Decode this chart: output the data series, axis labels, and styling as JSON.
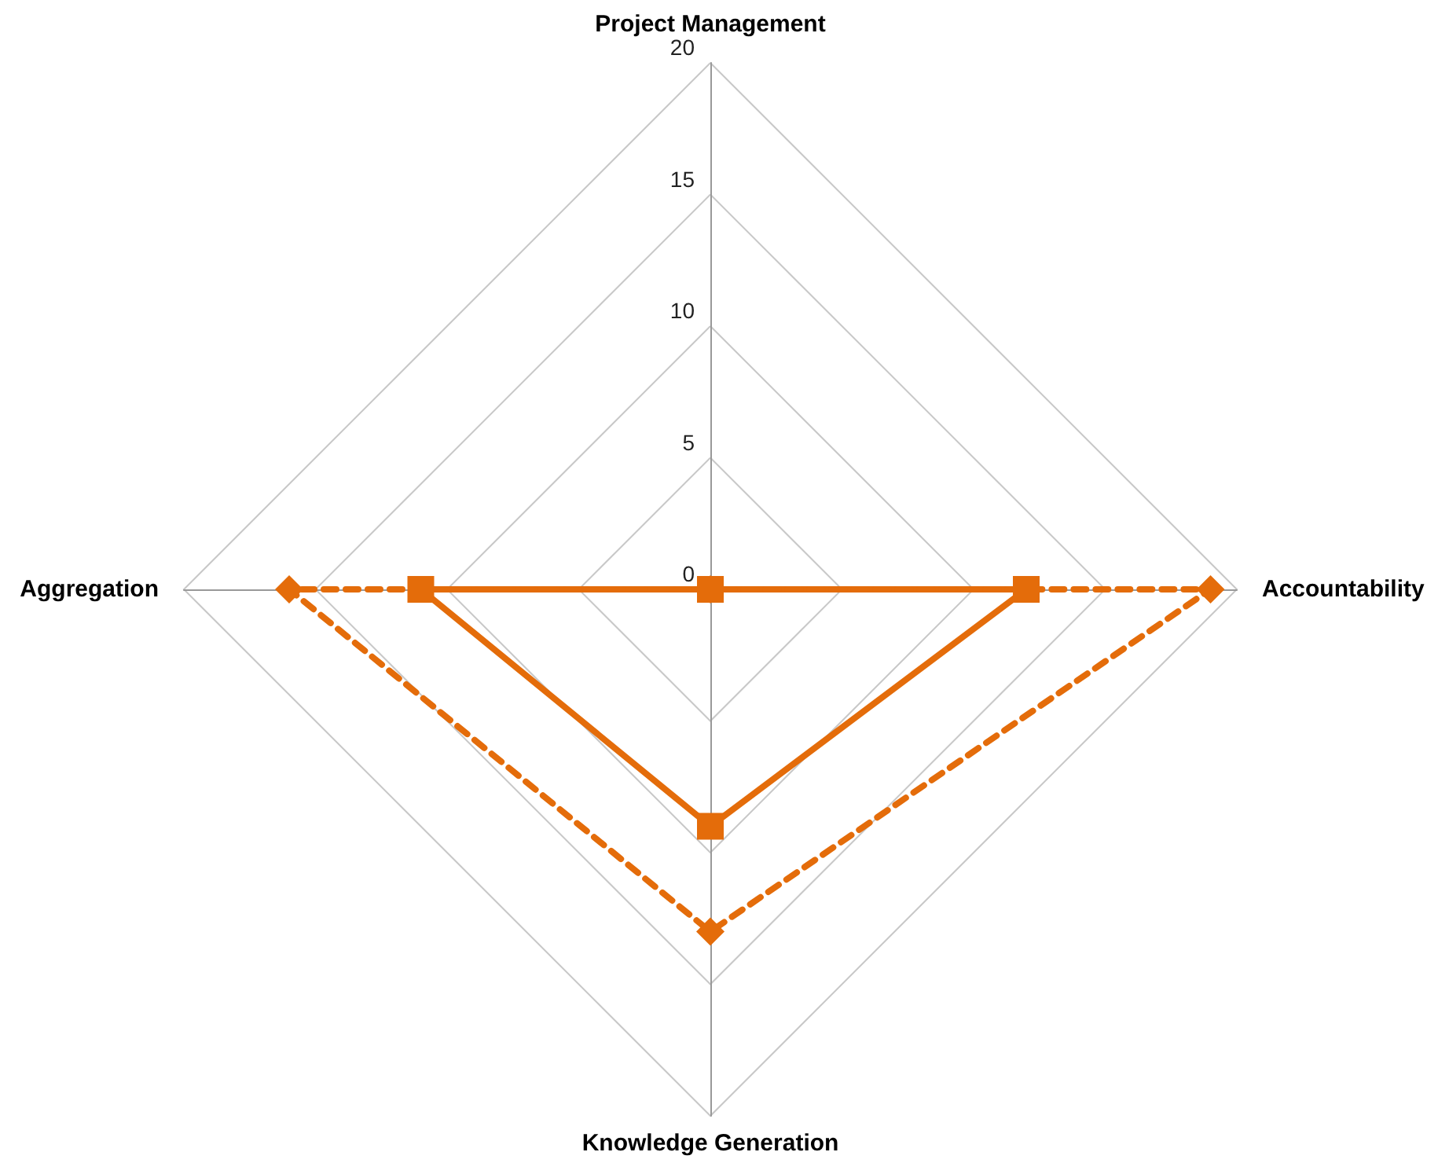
{
  "chart_data": {
    "type": "radar",
    "categories": [
      "Project Management",
      "Accountability",
      "Knowledge Generation",
      "Aggregation"
    ],
    "ylim": [
      0,
      20
    ],
    "yticks": [
      0,
      5,
      10,
      15,
      20
    ],
    "grid": true,
    "series": [
      {
        "color": "#e46c0a",
        "values": [
          0,
          12,
          9,
          11
        ],
        "marker": "square",
        "line_style": "solid"
      },
      {
        "color": "#e46c0a",
        "values": [
          0,
          19,
          13,
          16
        ],
        "marker": "diamond",
        "line_style": "dashed"
      }
    ]
  }
}
